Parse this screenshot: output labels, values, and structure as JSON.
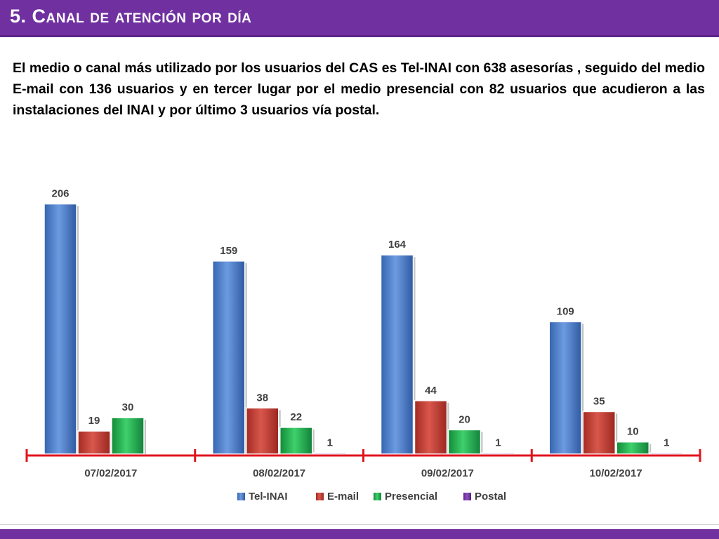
{
  "slide": {
    "title": "5. Canal de atención por día",
    "paragraph": "El medio o canal más utilizado por los usuarios del CAS es Tel-INAI con 638 asesorías , seguido del medio E-mail con 136 usuarios y en tercer lugar por el medio presencial con 82 usuarios que acudieron a las instalaciones del INAI y por último 3 usuarios vía postal."
  },
  "colors": {
    "title_bar": "#7030a0",
    "axis": "#e0141e"
  },
  "chart_data": {
    "type": "bar",
    "categories": [
      "07/02/2017",
      "08/02/2017",
      "09/02/2017",
      "10/02/2017"
    ],
    "series": [
      {
        "name": "Tel-INAI",
        "color": "#4a7ec8",
        "values": [
          206,
          159,
          164,
          109
        ]
      },
      {
        "name": "E-mail",
        "color": "#c0392b",
        "values": [
          19,
          38,
          44,
          35
        ]
      },
      {
        "name": "Presencial",
        "color": "#1fa94a",
        "values": [
          30,
          22,
          20,
          10
        ]
      },
      {
        "name": "Postal",
        "color": "#7030a0",
        "values": [
          null,
          1,
          1,
          1
        ]
      }
    ],
    "ylim": [
      0,
      215
    ],
    "grid": false,
    "legend": "bottom"
  }
}
